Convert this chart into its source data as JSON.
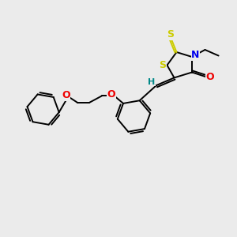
{
  "bg_color": "#ebebeb",
  "atom_colors": {
    "S": "#cccc00",
    "N": "#0000ee",
    "O": "#ee0000",
    "H": "#008888",
    "C": "#000000"
  },
  "line_color": "#000000",
  "line_width": 1.4,
  "figsize": [
    3.0,
    3.0
  ],
  "dpi": 100
}
